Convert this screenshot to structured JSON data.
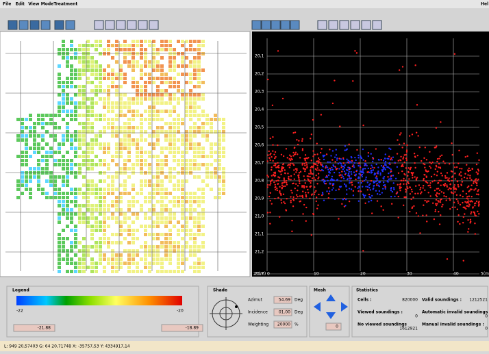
{
  "menu": [
    "File",
    "Edit",
    "View",
    "Mode",
    "Treatment"
  ],
  "help": "Hel",
  "scatter": {
    "y_labels": [
      "20,1",
      "20,2",
      "20,3",
      "20,4",
      "20,5",
      "20,6",
      "20,7",
      "20,8",
      "20,9",
      "21,0",
      "21,1",
      "21,2",
      "21,7"
    ],
    "corner_label": "21(m)",
    "x_labels": [
      "0",
      "10",
      "20",
      "30",
      "40",
      "5(m)"
    ]
  },
  "legend": {
    "title": "Legend",
    "min_tick": "-22",
    "max_tick": "-20",
    "min_value": "-21.88",
    "max_value": "-18.89"
  },
  "shade": {
    "title": "Shade",
    "rows": [
      [
        "Azimut",
        "54.69",
        "Deg"
      ],
      [
        "Incidence",
        "01.00",
        "Deg"
      ],
      [
        "Weighting",
        "20000",
        "%"
      ]
    ]
  },
  "mesh": {
    "title": "Mesh",
    "value": "0"
  },
  "statistics": {
    "title": "Statistics",
    "left": [
      [
        "Cells :",
        "820000"
      ],
      [
        "Viewed soundings :",
        "0"
      ],
      [
        "No viewed soundings",
        "1612921"
      ]
    ],
    "right": [
      [
        "Valid soundings :",
        "1212521"
      ],
      [
        "Automatic invalid soundings :",
        "0"
      ],
      [
        "Manual invalid soundings :",
        "0"
      ]
    ]
  },
  "status": "L: 949 20,57403 G: 64 20,71748 X: -35757,53 Y: 4334917,14"
}
